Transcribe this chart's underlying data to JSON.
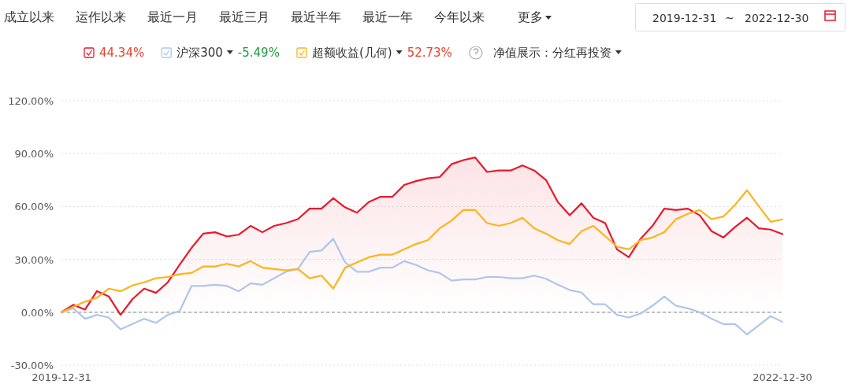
{
  "chart_data": {
    "type": "line",
    "legend": "top",
    "grid": "y",
    "marker": "none",
    "line_style": "solid",
    "categories": [
      "2019-12-31",
      null,
      null,
      null,
      null,
      null,
      null,
      null,
      null,
      null,
      null,
      null,
      null,
      null,
      null,
      null,
      null,
      null,
      null,
      null,
      null,
      null,
      null,
      null,
      null,
      null,
      null,
      null,
      null,
      null,
      null,
      null,
      null,
      null,
      null,
      null,
      null,
      null,
      null,
      null,
      null,
      null,
      null,
      null,
      null,
      null,
      null,
      null,
      null,
      null,
      null,
      null,
      null,
      null,
      null,
      null,
      null,
      null,
      null,
      null,
      null,
      "2022-12-30"
    ],
    "ylim": [
      -30,
      120
    ],
    "yticks": [
      {
        "value": -30,
        "label": "-30.00%"
      },
      {
        "value": 0,
        "label": "0.00%"
      },
      {
        "value": 30,
        "label": "30.00%"
      },
      {
        "value": 60,
        "label": "60.00%"
      },
      {
        "value": 90,
        "label": "90.00%"
      },
      {
        "value": 120,
        "label": "120.00%"
      }
    ],
    "series": [
      {
        "type": "area",
        "color": "#e8192c",
        "values": [
          0,
          4.2,
          1.5,
          12,
          9,
          -1.5,
          7.4,
          13.4,
          11,
          17,
          27,
          36.5,
          44.6,
          45.4,
          43,
          44,
          49,
          45.4,
          49,
          50.6,
          52.8,
          58.8,
          58.8,
          64.7,
          59.5,
          56.5,
          62.5,
          65.5,
          65.5,
          72.2,
          74.4,
          76,
          76.7,
          84,
          86.3,
          87.8,
          79.6,
          80.4,
          80.4,
          83.3,
          80.4,
          75,
          62.5,
          55,
          61.8,
          53.6,
          50.6,
          35.7,
          31.2,
          41.7,
          49,
          58.8,
          58,
          58.8,
          55,
          46,
          42.4,
          48.4,
          53.6,
          47.6,
          46.9,
          44.3
        ]
      },
      {
        "name": "沪深300",
        "color": "#aec6eb",
        "values": [
          0,
          2.2,
          -3.7,
          -1.5,
          -3,
          -9.7,
          -6.7,
          -3.7,
          -6,
          -1.5,
          0.7,
          14.9,
          14.9,
          15.6,
          14.9,
          11.9,
          16.4,
          15.6,
          19.3,
          23,
          24.5,
          34.2,
          35,
          41.7,
          28.3,
          23,
          23,
          25.3,
          25.3,
          29,
          26.8,
          23.8,
          22.3,
          17.9,
          18.6,
          18.6,
          20,
          20,
          19.3,
          19.3,
          20.8,
          19,
          15.6,
          12.6,
          11.2,
          4.5,
          4.5,
          -1.5,
          -3,
          -0.7,
          3.7,
          8.9,
          3.7,
          2.2,
          0,
          -3.7,
          -6.7,
          -6.7,
          -12.6,
          -7.4,
          -2.2,
          -5.5
        ]
      },
      {
        "name": "超额收益(几何)",
        "color": "#ffb31a",
        "values": [
          0,
          3,
          6,
          8.2,
          13.4,
          11.9,
          15.2,
          17,
          19.3,
          20,
          21.6,
          22.3,
          26,
          26,
          27.5,
          26,
          29,
          25.3,
          24.5,
          23.8,
          24.5,
          19.3,
          20.8,
          13.4,
          25.3,
          28.3,
          31.2,
          32.7,
          32.7,
          35.7,
          38.7,
          40.9,
          47.6,
          52,
          58,
          58,
          50.6,
          49,
          50.6,
          53.6,
          47.6,
          44.6,
          40.9,
          38.7,
          46,
          49,
          43.2,
          37.2,
          35.7,
          40.9,
          42.4,
          45.4,
          52.8,
          55.8,
          58,
          52.8,
          54.3,
          61,
          69.2,
          60.1,
          51.3,
          52.7
        ]
      }
    ],
    "ref_lines": [
      {
        "axis": "y",
        "value": 0,
        "color": "#999999",
        "line_style": "dashed"
      }
    ],
    "annotations": [
      "成立以来",
      "运作以来",
      "最近一月",
      "最近三月",
      "最近半年",
      "最近一年",
      "今年以来",
      "更多",
      "2019-12-31",
      "~",
      "2022-12-30",
      "44.34%",
      "-5.49%",
      "52.73%",
      "净值展示：分红再投资"
    ]
  }
}
